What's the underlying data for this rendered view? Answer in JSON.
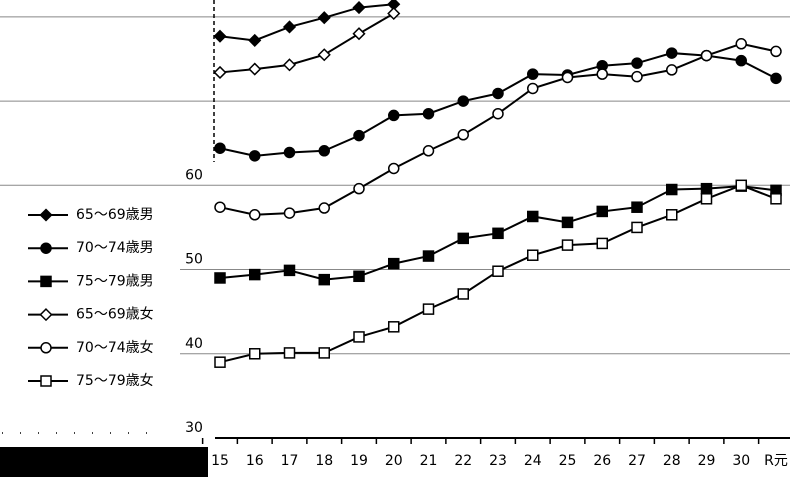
{
  "chart_data": {
    "type": "line",
    "categories": [
      "15",
      "16",
      "17",
      "18",
      "19",
      "20",
      "21",
      "22",
      "23",
      "24",
      "25",
      "26",
      "27",
      "28",
      "29",
      "30",
      "R元"
    ],
    "ylim": [
      30,
      82
    ],
    "yticks": [
      30,
      40,
      50,
      60
    ],
    "grid_lines": [
      40,
      50,
      60,
      70,
      80
    ],
    "series": [
      {
        "name": "65～69歳男",
        "color": "#000000",
        "marker": "diamond",
        "filled": true,
        "values": [
          77.7,
          77.2,
          78.8,
          79.9,
          81.1,
          81.5,
          null,
          null,
          null,
          null,
          null,
          null,
          null,
          null,
          null,
          null,
          null
        ]
      },
      {
        "name": "70～74歳男",
        "color": "#000000",
        "marker": "circle",
        "filled": true,
        "values": [
          64.4,
          63.5,
          63.9,
          64.1,
          65.9,
          68.3,
          68.5,
          70.0,
          70.9,
          73.2,
          73.1,
          74.2,
          74.5,
          75.7,
          75.4,
          74.8,
          72.7
        ]
      },
      {
        "name": "75～79歳男",
        "color": "#000000",
        "marker": "square",
        "filled": true,
        "values": [
          49.0,
          49.4,
          49.9,
          48.8,
          49.2,
          50.7,
          51.6,
          53.7,
          54.3,
          56.3,
          55.6,
          56.9,
          57.4,
          59.5,
          59.6,
          59.9,
          59.4
        ]
      },
      {
        "name": "65～69歳女",
        "color": "#000000",
        "marker": "diamond",
        "filled": false,
        "values": [
          73.4,
          73.8,
          74.3,
          75.5,
          78.0,
          80.4,
          null,
          null,
          null,
          null,
          null,
          null,
          null,
          null,
          null,
          null,
          null
        ]
      },
      {
        "name": "70～74歳女",
        "color": "#000000",
        "marker": "circle",
        "filled": false,
        "values": [
          57.4,
          56.5,
          56.7,
          57.3,
          59.6,
          62.0,
          64.1,
          66.0,
          68.5,
          71.5,
          72.8,
          73.2,
          72.9,
          73.7,
          75.4,
          76.8,
          75.9
        ]
      },
      {
        "name": "75～79歳女",
        "color": "#000000",
        "marker": "square",
        "filled": false,
        "values": [
          39.0,
          40.0,
          40.1,
          40.1,
          42.0,
          43.2,
          45.3,
          47.1,
          49.8,
          51.7,
          52.9,
          53.1,
          55.0,
          56.5,
          58.4,
          60.0,
          58.4
        ]
      }
    ]
  }
}
